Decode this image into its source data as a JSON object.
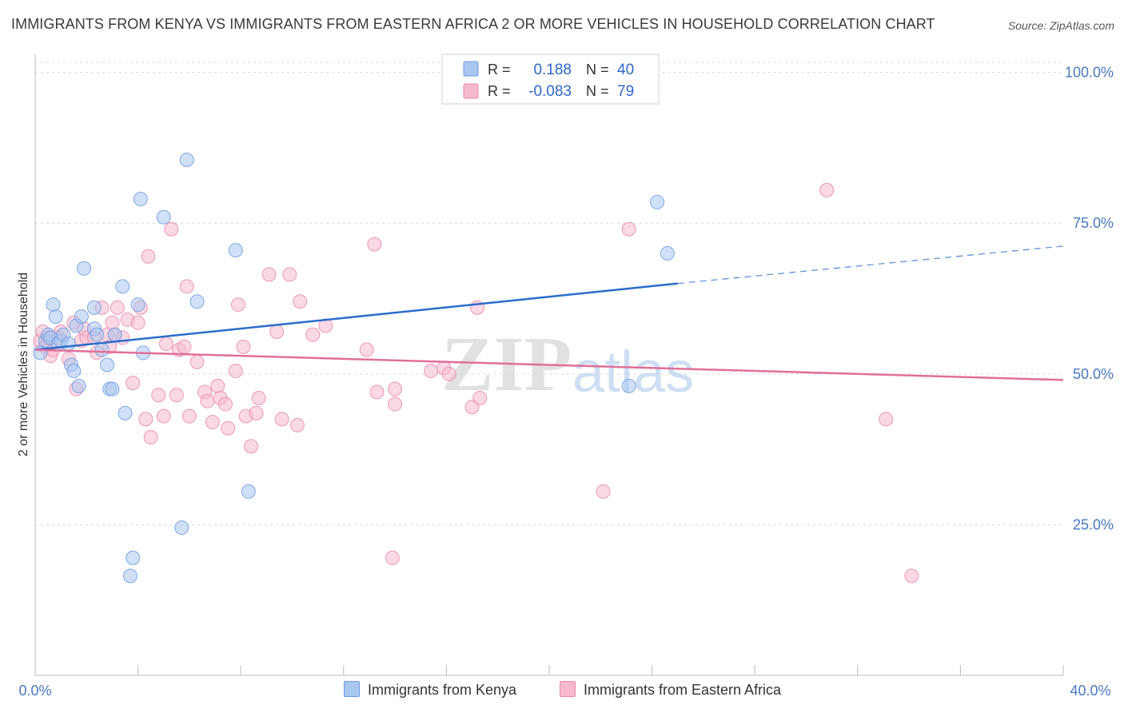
{
  "header": {
    "title": "IMMIGRANTS FROM KENYA VS IMMIGRANTS FROM EASTERN AFRICA 2 OR MORE VEHICLES IN HOUSEHOLD CORRELATION CHART",
    "source": "Source: ZipAtlas.com"
  },
  "watermark": {
    "zip": "ZIP",
    "atlas": "atlas"
  },
  "colors": {
    "kenya_fill": "#a9c6f0",
    "kenya_stroke": "#6c9be0",
    "kenya_line": "#2b6ccc",
    "africa_fill": "#f6b9cd",
    "africa_stroke": "#e98aab",
    "africa_line": "#e0709a",
    "tick": "#4a78c2",
    "grid": "#d9d9d9"
  },
  "chart_data": {
    "type": "scatter",
    "title": "IMMIGRANTS FROM KENYA VS IMMIGRANTS FROM EASTERN AFRICA 2 OR MORE VEHICLES IN HOUSEHOLD CORRELATION CHART",
    "xlabel": "",
    "ylabel": "2 or more Vehicles in Household",
    "xlim": [
      0,
      40
    ],
    "ylim": [
      0,
      103
    ],
    "x_tick_labels": {
      "min": "0.0%",
      "max": "40.0%"
    },
    "y_ticks": [
      {
        "value": 25,
        "label": "25.0%"
      },
      {
        "value": 50,
        "label": "50.0%"
      },
      {
        "value": 75,
        "label": "75.0%"
      },
      {
        "value": 100,
        "label": "100.0%"
      }
    ],
    "legend": {
      "position": "top-center",
      "rows": [
        {
          "r_label": "R =",
          "r_value": "0.188",
          "n_label": "N =",
          "n_value": "40"
        },
        {
          "r_label": "R =",
          "r_value": "-0.083",
          "n_label": "N =",
          "n_value": "79"
        }
      ]
    },
    "series": [
      {
        "name": "Immigrants from Kenya",
        "r": 0.188,
        "n": 40,
        "trend": {
          "x0": 0,
          "y0": 54.0,
          "x1": 25.0,
          "y1": 65.0,
          "dash_to_x": 40,
          "dash_to_y": 71.2
        },
        "points": [
          [
            0.2,
            53.5
          ],
          [
            0.4,
            55.5
          ],
          [
            0.5,
            56.5
          ],
          [
            0.6,
            56.0
          ],
          [
            0.7,
            61.5
          ],
          [
            0.8,
            59.5
          ],
          [
            0.9,
            55.0
          ],
          [
            1.0,
            55.5
          ],
          [
            1.1,
            56.5
          ],
          [
            1.3,
            55.0
          ],
          [
            1.4,
            51.5
          ],
          [
            1.5,
            50.5
          ],
          [
            1.6,
            58.0
          ],
          [
            1.7,
            48.0
          ],
          [
            1.9,
            67.5
          ],
          [
            1.8,
            59.5
          ],
          [
            2.3,
            57.5
          ],
          [
            2.3,
            61.0
          ],
          [
            2.4,
            56.5
          ],
          [
            2.6,
            54.0
          ],
          [
            2.8,
            51.5
          ],
          [
            2.9,
            47.5
          ],
          [
            3.0,
            47.5
          ],
          [
            3.1,
            56.5
          ],
          [
            3.4,
            64.5
          ],
          [
            3.5,
            43.5
          ],
          [
            3.7,
            16.5
          ],
          [
            3.8,
            19.5
          ],
          [
            4.0,
            61.5
          ],
          [
            4.1,
            79.0
          ],
          [
            4.2,
            53.5
          ],
          [
            5.0,
            76.0
          ],
          [
            5.7,
            24.5
          ],
          [
            5.9,
            85.5
          ],
          [
            6.3,
            62.0
          ],
          [
            7.8,
            70.5
          ],
          [
            8.3,
            30.5
          ],
          [
            23.1,
            48.0
          ],
          [
            24.2,
            78.5
          ],
          [
            24.6,
            70.0
          ]
        ]
      },
      {
        "name": "Immigrants from Eastern Africa",
        "r": -0.083,
        "n": 79,
        "trend": {
          "x0": 0,
          "y0": 54.0,
          "x1": 40,
          "y1": 49.0
        },
        "points": [
          [
            0.2,
            55.5
          ],
          [
            0.3,
            57.0
          ],
          [
            0.4,
            54.5
          ],
          [
            0.5,
            56.0
          ],
          [
            0.6,
            53.0
          ],
          [
            0.7,
            54.0
          ],
          [
            0.9,
            56.0
          ],
          [
            1.0,
            57.0
          ],
          [
            1.3,
            52.5
          ],
          [
            1.5,
            58.5
          ],
          [
            1.6,
            47.5
          ],
          [
            1.8,
            55.5
          ],
          [
            1.9,
            57.5
          ],
          [
            2.0,
            56.0
          ],
          [
            2.3,
            56.0
          ],
          [
            2.4,
            53.5
          ],
          [
            2.6,
            61.0
          ],
          [
            2.8,
            56.5
          ],
          [
            2.9,
            54.5
          ],
          [
            3.0,
            58.5
          ],
          [
            3.1,
            56.5
          ],
          [
            3.2,
            61.0
          ],
          [
            3.4,
            56.0
          ],
          [
            3.6,
            59.0
          ],
          [
            3.8,
            48.5
          ],
          [
            4.0,
            58.5
          ],
          [
            4.1,
            61.0
          ],
          [
            4.3,
            42.5
          ],
          [
            4.4,
            69.5
          ],
          [
            4.5,
            39.5
          ],
          [
            4.8,
            46.5
          ],
          [
            5.0,
            43.0
          ],
          [
            5.1,
            55.0
          ],
          [
            5.3,
            74.0
          ],
          [
            5.5,
            46.5
          ],
          [
            5.6,
            54.0
          ],
          [
            5.8,
            54.5
          ],
          [
            5.9,
            64.5
          ],
          [
            6.0,
            43.0
          ],
          [
            6.3,
            52.0
          ],
          [
            6.6,
            47.0
          ],
          [
            6.7,
            45.5
          ],
          [
            6.9,
            42.0
          ],
          [
            7.1,
            48.0
          ],
          [
            7.2,
            46.0
          ],
          [
            7.4,
            45.0
          ],
          [
            7.5,
            41.0
          ],
          [
            7.8,
            50.5
          ],
          [
            7.9,
            61.5
          ],
          [
            8.1,
            54.5
          ],
          [
            8.2,
            43.0
          ],
          [
            8.4,
            38.0
          ],
          [
            8.6,
            43.5
          ],
          [
            8.7,
            46.0
          ],
          [
            9.1,
            66.5
          ],
          [
            9.4,
            57.0
          ],
          [
            9.6,
            42.5
          ],
          [
            9.9,
            66.5
          ],
          [
            10.2,
            41.5
          ],
          [
            10.3,
            62.0
          ],
          [
            10.8,
            56.5
          ],
          [
            11.3,
            58.0
          ],
          [
            12.9,
            54.0
          ],
          [
            13.2,
            71.5
          ],
          [
            13.3,
            47.0
          ],
          [
            13.9,
            19.5
          ],
          [
            14.0,
            45.0
          ],
          [
            14.0,
            47.5
          ],
          [
            15.4,
            50.5
          ],
          [
            15.9,
            51.0
          ],
          [
            16.1,
            50.0
          ],
          [
            17.0,
            44.5
          ],
          [
            17.2,
            61.0
          ],
          [
            17.3,
            46.0
          ],
          [
            22.1,
            30.5
          ],
          [
            23.1,
            74.0
          ],
          [
            30.8,
            80.5
          ],
          [
            33.1,
            42.5
          ],
          [
            34.1,
            16.5
          ]
        ]
      }
    ]
  }
}
